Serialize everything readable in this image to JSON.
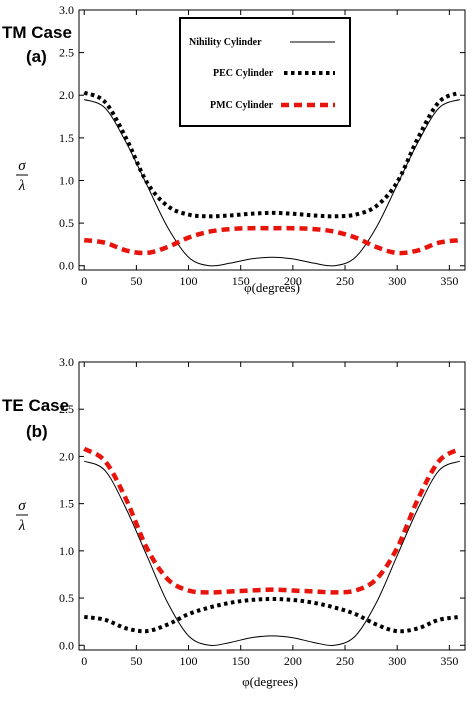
{
  "chart_data": [
    {
      "type": "line",
      "case_label": "TM Case",
      "panel_label": "(a)",
      "xlabel": "φ(degrees)",
      "ylabel_num": "σ",
      "ylabel_den": "λ",
      "xlim": [
        -5,
        365
      ],
      "ylim": [
        -0.05,
        3.0
      ],
      "xticks": [
        0,
        50,
        100,
        150,
        200,
        250,
        300,
        350
      ],
      "yticks": [
        0.0,
        0.5,
        1.0,
        1.5,
        2.0,
        2.5,
        3.0
      ],
      "ytick_labels": [
        "0.0",
        "0.5",
        "1.0",
        "1.5",
        "2.0",
        "2.5",
        "3.0"
      ],
      "grid": false,
      "legend_position": "top-center",
      "series": [
        {
          "name": "Nihility Cylinder",
          "color": "#000000",
          "style": "solid",
          "x": [
            0,
            20,
            40,
            60,
            80,
            100,
            120,
            140,
            160,
            180,
            200,
            220,
            240,
            260,
            280,
            300,
            320,
            340,
            360
          ],
          "y": [
            1.95,
            1.85,
            1.45,
            0.95,
            0.45,
            0.1,
            0.0,
            0.03,
            0.08,
            0.1,
            0.08,
            0.03,
            0.0,
            0.1,
            0.45,
            0.95,
            1.45,
            1.85,
            1.95
          ]
        },
        {
          "name": "PEC Cylinder",
          "color": "#000000",
          "style": "dotted",
          "x": [
            0,
            20,
            40,
            60,
            80,
            100,
            120,
            140,
            160,
            180,
            200,
            220,
            240,
            260,
            280,
            300,
            320,
            340,
            360
          ],
          "y": [
            2.03,
            1.92,
            1.5,
            0.98,
            0.7,
            0.6,
            0.58,
            0.59,
            0.61,
            0.62,
            0.61,
            0.59,
            0.58,
            0.6,
            0.7,
            0.98,
            1.5,
            1.92,
            2.03
          ]
        },
        {
          "name": "PMC Cylinder",
          "color": "#e8140c",
          "style": "dashed",
          "x": [
            0,
            20,
            40,
            60,
            80,
            100,
            120,
            140,
            160,
            180,
            200,
            220,
            240,
            260,
            280,
            300,
            320,
            340,
            360
          ],
          "y": [
            0.3,
            0.27,
            0.18,
            0.15,
            0.22,
            0.33,
            0.4,
            0.43,
            0.44,
            0.44,
            0.44,
            0.43,
            0.4,
            0.33,
            0.22,
            0.15,
            0.18,
            0.27,
            0.3
          ]
        }
      ]
    },
    {
      "type": "line",
      "case_label": "TE Case",
      "panel_label": "(b)",
      "xlabel": "φ(degrees)",
      "ylabel_num": "σ",
      "ylabel_den": "λ",
      "xlim": [
        -5,
        365
      ],
      "ylim": [
        -0.05,
        3.0
      ],
      "xticks": [
        0,
        50,
        100,
        150,
        200,
        250,
        300,
        350
      ],
      "yticks": [
        0.0,
        0.5,
        1.0,
        1.5,
        2.0,
        2.5,
        3.0
      ],
      "ytick_labels": [
        "0.0",
        "0.5",
        "1.0",
        "1.5",
        "2.0",
        "2.5",
        "3.0"
      ],
      "grid": false,
      "series": [
        {
          "color": "#000000",
          "style": "solid",
          "x": [
            0,
            20,
            40,
            60,
            80,
            100,
            120,
            140,
            160,
            180,
            200,
            220,
            240,
            260,
            280,
            300,
            320,
            340,
            360
          ],
          "y": [
            1.95,
            1.85,
            1.45,
            0.95,
            0.45,
            0.1,
            0.0,
            0.03,
            0.08,
            0.1,
            0.08,
            0.03,
            0.0,
            0.1,
            0.45,
            0.95,
            1.45,
            1.85,
            1.95
          ]
        },
        {
          "color": "#000000",
          "style": "dotted",
          "x": [
            0,
            20,
            40,
            60,
            80,
            100,
            120,
            140,
            160,
            180,
            200,
            220,
            240,
            260,
            280,
            300,
            320,
            340,
            360
          ],
          "y": [
            0.3,
            0.27,
            0.18,
            0.15,
            0.22,
            0.33,
            0.4,
            0.45,
            0.48,
            0.49,
            0.48,
            0.45,
            0.4,
            0.33,
            0.22,
            0.15,
            0.18,
            0.27,
            0.3
          ]
        },
        {
          "color": "#e8140c",
          "style": "dashed",
          "x": [
            0,
            20,
            40,
            60,
            80,
            100,
            120,
            140,
            160,
            180,
            200,
            220,
            240,
            260,
            280,
            300,
            320,
            340,
            360
          ],
          "y": [
            2.08,
            1.95,
            1.55,
            1.03,
            0.7,
            0.58,
            0.56,
            0.57,
            0.58,
            0.59,
            0.58,
            0.57,
            0.56,
            0.58,
            0.7,
            1.03,
            1.55,
            1.95,
            2.08
          ]
        }
      ]
    }
  ]
}
